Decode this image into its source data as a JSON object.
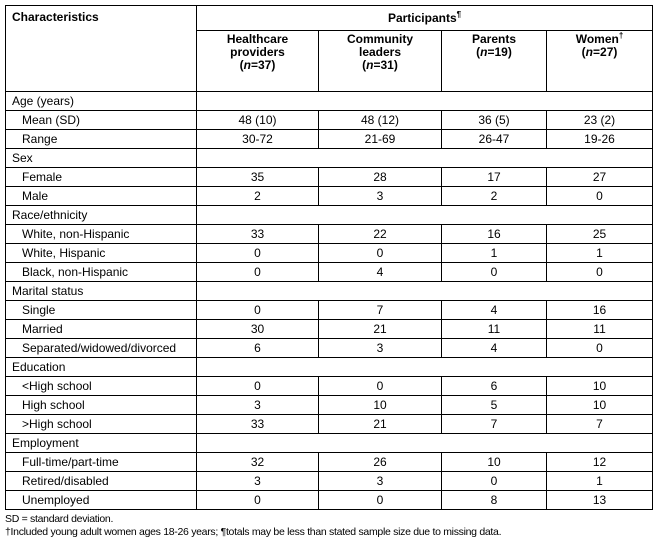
{
  "header": {
    "characteristics": "Characteristics",
    "participants": "Participants",
    "participants_mark": "¶",
    "columns": [
      {
        "line1": "Healthcare",
        "line2": "providers",
        "n": "37",
        "mark": ""
      },
      {
        "line1": "Community",
        "line2": "leaders",
        "n": "31",
        "mark": ""
      },
      {
        "line1": "Parents",
        "line2": "",
        "n": "19",
        "mark": ""
      },
      {
        "line1": "Women",
        "line2": "",
        "n": "27",
        "mark": "†"
      }
    ]
  },
  "sections": [
    {
      "title": "Age (years)",
      "rows": [
        {
          "label": "Mean (SD)",
          "values": [
            "48 (10)",
            "48 (12)",
            "36 (5)",
            "23 (2)"
          ]
        },
        {
          "label": "Range",
          "values": [
            "30-72",
            "21-69",
            "26-47",
            "19-26"
          ]
        }
      ]
    },
    {
      "title": "Sex",
      "rows": [
        {
          "label": "Female",
          "values": [
            "35",
            "28",
            "17",
            "27"
          ]
        },
        {
          "label": "Male",
          "values": [
            "2",
            "3",
            "2",
            "0"
          ]
        }
      ]
    },
    {
      "title": "Race/ethnicity",
      "rows": [
        {
          "label": "White, non-Hispanic",
          "values": [
            "33",
            "22",
            "16",
            "25"
          ]
        },
        {
          "label": "White, Hispanic",
          "values": [
            "0",
            "0",
            "1",
            "1"
          ]
        },
        {
          "label": "Black, non-Hispanic",
          "values": [
            "0",
            "4",
            "0",
            "0"
          ]
        }
      ]
    },
    {
      "title": "Marital status",
      "rows": [
        {
          "label": "Single",
          "values": [
            "0",
            "7",
            "4",
            "16"
          ]
        },
        {
          "label": "Married",
          "values": [
            "30",
            "21",
            "11",
            "11"
          ]
        },
        {
          "label": "Separated/widowed/divorced",
          "values": [
            "6",
            "3",
            "4",
            "0"
          ]
        }
      ]
    },
    {
      "title": "Education",
      "rows": [
        {
          "label": "<High school",
          "values": [
            "0",
            "0",
            "6",
            "10"
          ]
        },
        {
          "label": "High school",
          "values": [
            "3",
            "10",
            "5",
            "10"
          ]
        },
        {
          "label": ">High school",
          "values": [
            "33",
            "21",
            "7",
            "7"
          ]
        }
      ]
    },
    {
      "title": "Employment",
      "rows": [
        {
          "label": "Full-time/part-time",
          "values": [
            "32",
            "26",
            "10",
            "12"
          ]
        },
        {
          "label": "Retired/disabled",
          "values": [
            "3",
            "3",
            "0",
            "1"
          ]
        },
        {
          "label": "Unemployed",
          "values": [
            "0",
            "0",
            "8",
            "13"
          ]
        }
      ]
    }
  ],
  "footnotes": [
    "SD = standard deviation.",
    "†Included young adult women ages 18-26 years; ¶totals may be less than stated sample size due to missing data."
  ]
}
